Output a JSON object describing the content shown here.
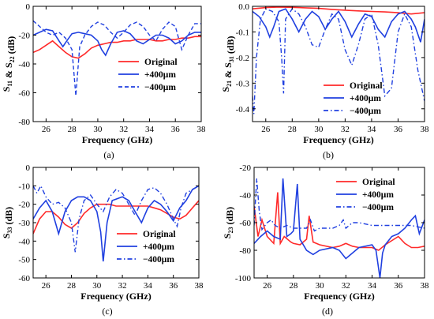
{
  "colors": {
    "original": "#ff2a2a",
    "plus": "#2040e0",
    "minus": "#2040e0"
  },
  "chart_data": [
    {
      "type": "line",
      "panel_label": "(a)",
      "xlabel": "Frequency (GHz)",
      "ylabel": "S11 & S22 (dB)",
      "xlim": [
        25,
        38
      ],
      "ylim": [
        -80,
        0
      ],
      "xticks": [
        26,
        28,
        30,
        32,
        34,
        36,
        38
      ],
      "yticks": [
        0,
        -20,
        -40,
        -60,
        -80
      ],
      "grid": false,
      "legend_position": "center-right",
      "series": [
        {
          "name": "Original",
          "style": "solid",
          "color": "#ff2a2a",
          "x": [
            25,
            25.5,
            26,
            26.5,
            27,
            27.5,
            28,
            28.5,
            29,
            29.5,
            30,
            30.5,
            31,
            31.5,
            32,
            32.5,
            33,
            33.5,
            34,
            34.5,
            35,
            35.5,
            36,
            36.5,
            37,
            37.5,
            38
          ],
          "y": [
            -32,
            -30,
            -27,
            -24,
            -28,
            -32,
            -35,
            -36,
            -33,
            -29,
            -27,
            -26,
            -25,
            -25,
            -24,
            -24,
            -23,
            -23,
            -23,
            -24,
            -24,
            -23,
            -23,
            -22,
            -22,
            -21,
            -21
          ]
        },
        {
          "name": "+400μm",
          "style": "solid",
          "color": "#2040e0",
          "x": [
            25,
            25.5,
            26,
            26.5,
            27,
            27.3,
            27.6,
            28,
            28.5,
            29,
            29.5,
            30,
            30.3,
            30.6,
            31,
            31.5,
            32,
            32.5,
            33,
            33.5,
            34,
            34.5,
            35,
            35.5,
            36,
            36.5,
            37,
            37.5,
            38
          ],
          "y": [
            -20,
            -18,
            -16,
            -17,
            -24,
            -28,
            -24,
            -19,
            -18,
            -19,
            -20,
            -24,
            -30,
            -34,
            -26,
            -18,
            -17,
            -19,
            -24,
            -26,
            -23,
            -20,
            -20,
            -22,
            -26,
            -24,
            -20,
            -18,
            -18
          ]
        },
        {
          "name": "−400μm",
          "style": "dash",
          "color": "#2040e0",
          "x": [
            25,
            25.5,
            26,
            26.5,
            27,
            27.5,
            28,
            28.3,
            28.6,
            29,
            29.5,
            30,
            30.5,
            31,
            31.5,
            32,
            32.5,
            33,
            33.5,
            34,
            34.5,
            35,
            35.5,
            36,
            36.5,
            37,
            37.5,
            38
          ],
          "y": [
            -10,
            -14,
            -18,
            -20,
            -18,
            -22,
            -30,
            -62,
            -28,
            -20,
            -14,
            -11,
            -13,
            -18,
            -22,
            -18,
            -13,
            -11,
            -14,
            -20,
            -24,
            -16,
            -11,
            -14,
            -30,
            -20,
            -12,
            -12
          ]
        }
      ]
    },
    {
      "type": "line",
      "panel_label": "(b)",
      "xlabel": "Frequency (GHz)",
      "ylabel": "S21 & S31 (dB)",
      "xlim": [
        25,
        38
      ],
      "ylim": [
        -0.45,
        0
      ],
      "xticks": [
        26,
        28,
        30,
        32,
        34,
        36,
        38
      ],
      "yticks": [
        0.0,
        -0.1,
        -0.2,
        -0.3,
        -0.4
      ],
      "ytick_labels": [
        "0.0",
        "-0.1",
        "-0.2",
        "-0.3",
        "-0.4"
      ],
      "grid": false,
      "legend_position": "bottom-right",
      "series": [
        {
          "name": "Original",
          "style": "solid",
          "color": "#ff2a2a",
          "x": [
            25,
            26,
            27,
            28,
            29,
            30,
            31,
            32,
            33,
            34,
            35,
            36,
            37,
            38
          ],
          "y": [
            -0.01,
            -0.005,
            -0.003,
            -0.004,
            -0.006,
            -0.008,
            -0.012,
            -0.015,
            -0.018,
            -0.02,
            -0.022,
            -0.025,
            -0.03,
            -0.025
          ]
        },
        {
          "name": "+400μm",
          "style": "solid",
          "color": "#2040e0",
          "x": [
            25,
            25.5,
            26,
            26.3,
            26.6,
            27,
            27.5,
            28,
            28.5,
            29,
            29.5,
            30,
            30.5,
            31,
            31.5,
            32,
            32.5,
            33,
            33.5,
            34,
            34.5,
            35,
            35.5,
            36,
            36.5,
            37,
            37.3,
            37.7,
            38
          ],
          "y": [
            -0.02,
            -0.04,
            -0.08,
            -0.12,
            -0.08,
            -0.02,
            -0.01,
            -0.05,
            -0.1,
            -0.05,
            -0.02,
            -0.04,
            -0.09,
            -0.05,
            -0.02,
            -0.06,
            -0.12,
            -0.07,
            -0.03,
            -0.04,
            -0.09,
            -0.12,
            -0.06,
            -0.03,
            -0.02,
            -0.05,
            -0.08,
            -0.14,
            -0.05
          ]
        },
        {
          "name": "−400μm",
          "style": "dashdot",
          "color": "#2040e0",
          "x": [
            25,
            25.1,
            25.3,
            25.6,
            26,
            26.5,
            27,
            27.2,
            27.35,
            27.5,
            28,
            28.5,
            29,
            29.5,
            30,
            30.5,
            31,
            31.5,
            32,
            32.5,
            33,
            33.5,
            34,
            34.5,
            35,
            35.5,
            36,
            36.5,
            37,
            37.5,
            38
          ],
          "y": [
            -0.35,
            -0.42,
            -0.2,
            -0.05,
            -0.01,
            -0.02,
            -0.06,
            -0.2,
            -0.34,
            -0.05,
            -0.01,
            -0.03,
            -0.08,
            -0.15,
            -0.16,
            -0.09,
            -0.03,
            -0.05,
            -0.17,
            -0.23,
            -0.15,
            -0.05,
            -0.03,
            -0.15,
            -0.35,
            -0.32,
            -0.1,
            -0.03,
            -0.08,
            -0.25,
            -0.37
          ]
        }
      ]
    },
    {
      "type": "line",
      "panel_label": "(c)",
      "xlabel": "Frequency (GHz)",
      "ylabel": "S33 (dB)",
      "xlim": [
        25,
        38
      ],
      "ylim": [
        -60,
        0
      ],
      "xticks": [
        26,
        28,
        30,
        32,
        34,
        36,
        38
      ],
      "yticks": [
        0,
        -10,
        -20,
        -30,
        -40,
        -50,
        -60
      ],
      "grid": false,
      "legend_position": "bottom-right",
      "series": [
        {
          "name": "Original",
          "style": "solid",
          "color": "#ff2a2a",
          "x": [
            25,
            25.5,
            26,
            26.5,
            27,
            27.5,
            28,
            28.5,
            29,
            29.5,
            30,
            30.5,
            31,
            31.5,
            32,
            32.5,
            33,
            33.5,
            34,
            34.5,
            35,
            35.5,
            36,
            36.5,
            37,
            37.5,
            38
          ],
          "y": [
            -36,
            -28,
            -24,
            -24,
            -27,
            -31,
            -33,
            -30,
            -25,
            -22,
            -20,
            -20,
            -20,
            -21,
            -21,
            -21,
            -21,
            -21,
            -21,
            -22,
            -23,
            -25,
            -27,
            -28,
            -26,
            -22,
            -18
          ]
        },
        {
          "name": "+400μm",
          "style": "solid",
          "color": "#2040e0",
          "x": [
            25,
            25.5,
            26,
            26.5,
            27,
            27.5,
            28,
            28.5,
            29,
            29.5,
            30,
            30.3,
            30.5,
            30.8,
            31.2,
            32,
            32.5,
            33,
            33.5,
            34,
            34.5,
            35,
            35.5,
            36,
            36.5,
            37,
            37.5,
            38
          ],
          "y": [
            -28,
            -22,
            -18,
            -24,
            -36,
            -24,
            -18,
            -16,
            -16,
            -18,
            -24,
            -35,
            -51,
            -30,
            -18,
            -16,
            -18,
            -24,
            -30,
            -22,
            -18,
            -20,
            -24,
            -29,
            -22,
            -18,
            -12,
            -10
          ]
        },
        {
          "name": "−400μm",
          "style": "dashdot",
          "color": "#2040e0",
          "x": [
            25,
            25.3,
            25.6,
            26,
            26.5,
            27,
            27.5,
            28,
            28.3,
            28.6,
            29,
            29.5,
            30,
            30.5,
            31,
            31.5,
            32,
            32.5,
            33,
            33.5,
            34,
            34.5,
            35,
            35.5,
            36,
            36.3,
            36.6,
            37,
            37.5,
            38
          ],
          "y": [
            -10,
            -14,
            -10,
            -16,
            -20,
            -19,
            -22,
            -30,
            -46,
            -28,
            -18,
            -15,
            -20,
            -24,
            -16,
            -12,
            -14,
            -20,
            -26,
            -18,
            -12,
            -11,
            -14,
            -20,
            -28,
            -32,
            -22,
            -14,
            -12,
            -10
          ]
        }
      ]
    },
    {
      "type": "line",
      "panel_label": "(d)",
      "xlabel": "Frequency (GHz)",
      "ylabel": "S23 (dB)",
      "xlim": [
        25,
        38
      ],
      "ylim": [
        -100,
        -20
      ],
      "xticks": [
        26,
        28,
        30,
        32,
        34,
        36,
        38
      ],
      "yticks": [
        -20,
        -40,
        -60,
        -80,
        -100
      ],
      "grid": false,
      "legend_position": "top-right",
      "series": [
        {
          "name": "Original",
          "style": "solid",
          "color": "#ff2a2a",
          "x": [
            25,
            25.3,
            25.6,
            26,
            26.5,
            26.8,
            27,
            27.3,
            27.8,
            28,
            28.5,
            29,
            29.2,
            29.5,
            30,
            31,
            31.5,
            32,
            32.5,
            33,
            34,
            34.5,
            35,
            36,
            36.5,
            37,
            37.5,
            38
          ],
          "y": [
            -48,
            -70,
            -58,
            -70,
            -75,
            -38,
            -75,
            -70,
            -74,
            -75,
            -76,
            -72,
            -55,
            -74,
            -76,
            -78,
            -77,
            -75,
            -77,
            -78,
            -78,
            -80,
            -76,
            -70,
            -75,
            -78,
            -78,
            -77
          ]
        },
        {
          "name": "+400μm",
          "style": "solid",
          "color": "#2040e0",
          "x": [
            25,
            25.5,
            26,
            26.5,
            27,
            27.2,
            27.5,
            27.8,
            28,
            28.3,
            28.5,
            29,
            29.5,
            30,
            31,
            31.5,
            32,
            32.5,
            33,
            34,
            34.3,
            34.6,
            34.8,
            35,
            35.5,
            36,
            36.5,
            37,
            37.3,
            37.6,
            38
          ],
          "y": [
            -75,
            -70,
            -66,
            -70,
            -72,
            -28,
            -70,
            -68,
            -66,
            -32,
            -72,
            -80,
            -83,
            -80,
            -78,
            -80,
            -86,
            -82,
            -78,
            -76,
            -80,
            -100,
            -82,
            -76,
            -70,
            -68,
            -64,
            -58,
            -55,
            -68,
            -58
          ]
        },
        {
          "name": "−400μm",
          "style": "dashdot",
          "color": "#2040e0",
          "x": [
            25,
            25.2,
            25.4,
            25.6,
            26,
            26.3,
            26.6,
            27,
            27.5,
            28,
            28.5,
            29,
            29.3,
            29.6,
            30,
            31,
            31.5,
            31.8,
            32,
            32.5,
            33,
            34,
            35,
            36,
            36.5,
            37,
            37.5,
            38
          ],
          "y": [
            -62,
            -28,
            -52,
            -65,
            -60,
            -58,
            -62,
            -64,
            -62,
            -64,
            -64,
            -64,
            -58,
            -66,
            -64,
            -64,
            -62,
            -58,
            -64,
            -60,
            -60,
            -62,
            -62,
            -62,
            -62,
            -62,
            -63,
            -64
          ]
        }
      ]
    }
  ]
}
